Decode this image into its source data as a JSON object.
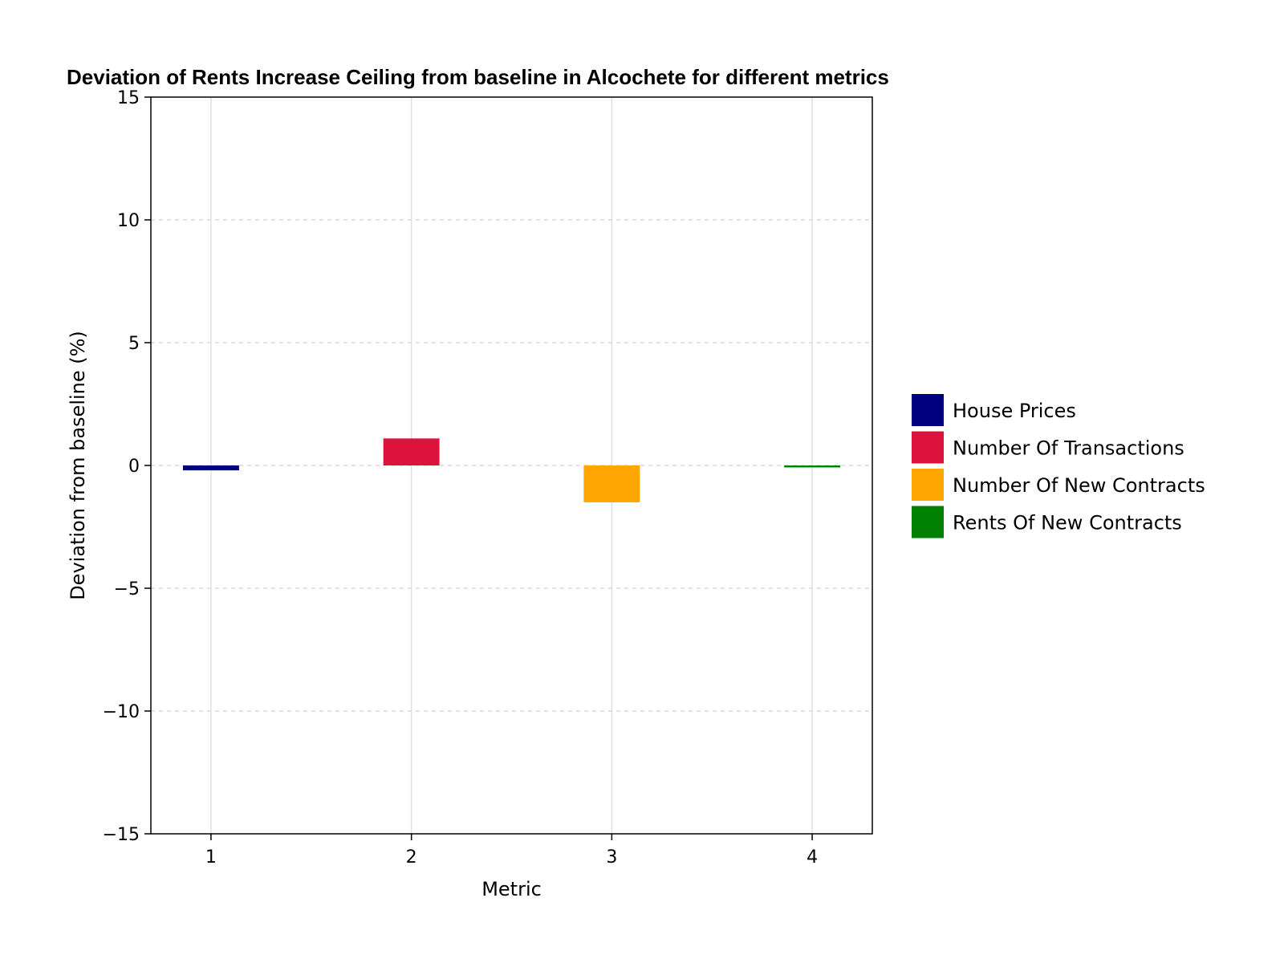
{
  "chart_data": {
    "type": "bar",
    "title": "Deviation of Rents Increase Ceiling from baseline in Alcochete for different metrics",
    "xlabel": "Metric",
    "ylabel": "Deviation from baseline (%)",
    "ylim": [
      -15,
      15
    ],
    "yticks": [
      -15,
      -10,
      -5,
      0,
      5,
      10,
      15
    ],
    "ytick_labels": [
      "−15",
      "−10",
      "−5",
      "0",
      "5",
      "10",
      "15"
    ],
    "xlim": [
      0.7,
      4.3
    ],
    "categories": [
      "1",
      "2",
      "3",
      "4"
    ],
    "x": [
      1,
      2,
      3,
      4
    ],
    "values": [
      -0.2,
      1.1,
      -1.5,
      -0.08
    ],
    "bar_colors": [
      "#000080",
      "#dc143c",
      "#ffa500",
      "#008000"
    ],
    "legend": {
      "placement": "right",
      "entries": [
        {
          "label": "House Prices",
          "color": "#000080"
        },
        {
          "label": "Number Of Transactions",
          "color": "#dc143c"
        },
        {
          "label": "Number Of New Contracts",
          "color": "#ffa500"
        },
        {
          "label": "Rents Of New Contracts",
          "color": "#008000"
        }
      ]
    },
    "grid": true,
    "grid_style": {
      "x": "solid",
      "y": "dashed"
    }
  }
}
